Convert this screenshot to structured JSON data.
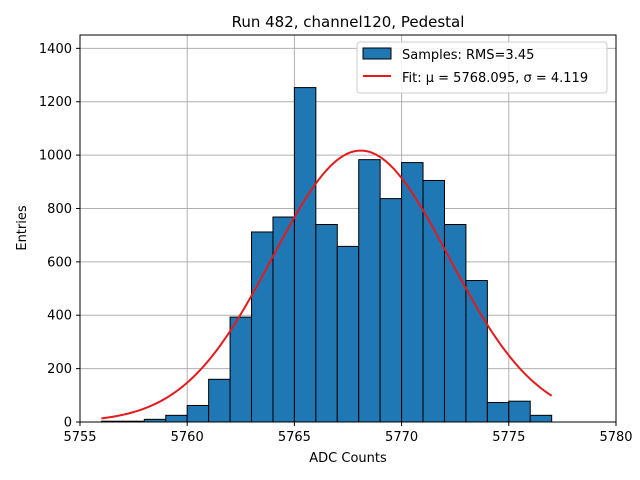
{
  "chart_data": {
    "type": "bar",
    "title": "Run 482, channel120, Pedestal",
    "xlabel": "ADC Counts",
    "ylabel": "Entries",
    "xlim": [
      5755,
      5780
    ],
    "ylim": [
      0,
      1450
    ],
    "xticks": [
      5755,
      5760,
      5765,
      5770,
      5775,
      5780
    ],
    "yticks": [
      0,
      200,
      400,
      600,
      800,
      1000,
      1200,
      1400
    ],
    "grid": true,
    "bin_width": 1,
    "bin_edges_start": [
      5756,
      5757,
      5758,
      5759,
      5760,
      5761,
      5762,
      5763,
      5764,
      5765,
      5766,
      5767,
      5768,
      5769,
      5770,
      5771,
      5772,
      5773,
      5774,
      5775,
      5776
    ],
    "values": [
      3,
      3,
      10,
      25,
      62,
      160,
      393,
      712,
      768,
      1253,
      740,
      658,
      983,
      837,
      972,
      905,
      740,
      530,
      73,
      78,
      25
    ],
    "fit": {
      "mu": 5768.095,
      "sigma": 4.119,
      "amplitude": 1017,
      "range": [
        5756,
        5777
      ]
    },
    "legend": {
      "position": "upper-right",
      "entries": [
        {
          "label": "Samples: RMS=3.45",
          "kind": "bar"
        },
        {
          "label": "Fit: μ = 5768.095, σ = 4.119",
          "kind": "line"
        }
      ]
    },
    "colors": {
      "bar_fill": "#1f77b4",
      "bar_edge": "#000000",
      "fit_line": "#e41a1c",
      "grid": "#b0b0b0"
    }
  }
}
